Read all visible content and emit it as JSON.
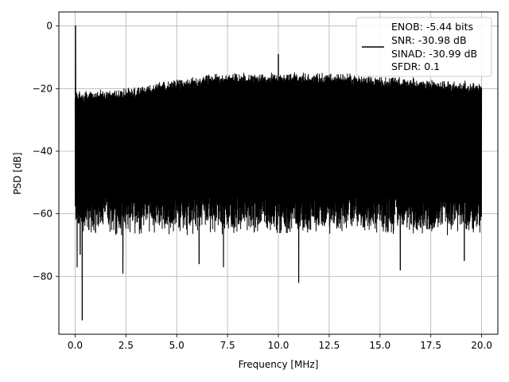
{
  "chart_data": {
    "type": "line",
    "title": "",
    "xlabel": "Frequency [MHz]",
    "ylabel": "PSD [dB]",
    "xlim": [
      -0.8,
      20.8
    ],
    "ylim": [
      -98.5,
      4.5
    ],
    "x_ticks": [
      0.0,
      2.5,
      5.0,
      7.5,
      10.0,
      12.5,
      15.0,
      17.5,
      20.0
    ],
    "x_tick_labels": [
      "0.0",
      "2.5",
      "5.0",
      "7.5",
      "10.0",
      "12.5",
      "15.0",
      "17.5",
      "20.0"
    ],
    "y_ticks": [
      0,
      -20,
      -40,
      -60,
      -80
    ],
    "y_tick_labels": [
      "0",
      "−20",
      "−40",
      "−60",
      "−80"
    ],
    "grid": true,
    "legend_position": "top-right",
    "line_color": "#000000",
    "legend_lines": [
      "ENOB: -5.44 bits",
      "SNR: -30.98 dB",
      "SINAD: -30.99 dB",
      "SFDR: 0.1"
    ],
    "series": [
      {
        "x_range": [
          0.0,
          20.0
        ],
        "noise_floor_upper_profile": [
          {
            "x": 0.0,
            "y": -22
          },
          {
            "x": 2.5,
            "y": -21
          },
          {
            "x": 5.0,
            "y": -18
          },
          {
            "x": 7.5,
            "y": -16
          },
          {
            "x": 10.0,
            "y": -16
          },
          {
            "x": 12.5,
            "y": -16
          },
          {
            "x": 15.0,
            "y": -17
          },
          {
            "x": 17.5,
            "y": -18
          },
          {
            "x": 20.0,
            "y": -19
          }
        ],
        "noise_floor_lower_typical": -62,
        "peaks": [
          {
            "x": 0.02,
            "y": 0.1
          },
          {
            "x": 10.0,
            "y": -9.0
          }
        ],
        "notable_dips": [
          {
            "x": 0.1,
            "y": -77
          },
          {
            "x": 0.25,
            "y": -73
          },
          {
            "x": 0.35,
            "y": -94
          },
          {
            "x": 2.35,
            "y": -79
          },
          {
            "x": 6.1,
            "y": -76
          },
          {
            "x": 7.3,
            "y": -77
          },
          {
            "x": 11.0,
            "y": -82
          },
          {
            "x": 16.0,
            "y": -78
          },
          {
            "x": 19.15,
            "y": -75
          }
        ]
      }
    ]
  }
}
